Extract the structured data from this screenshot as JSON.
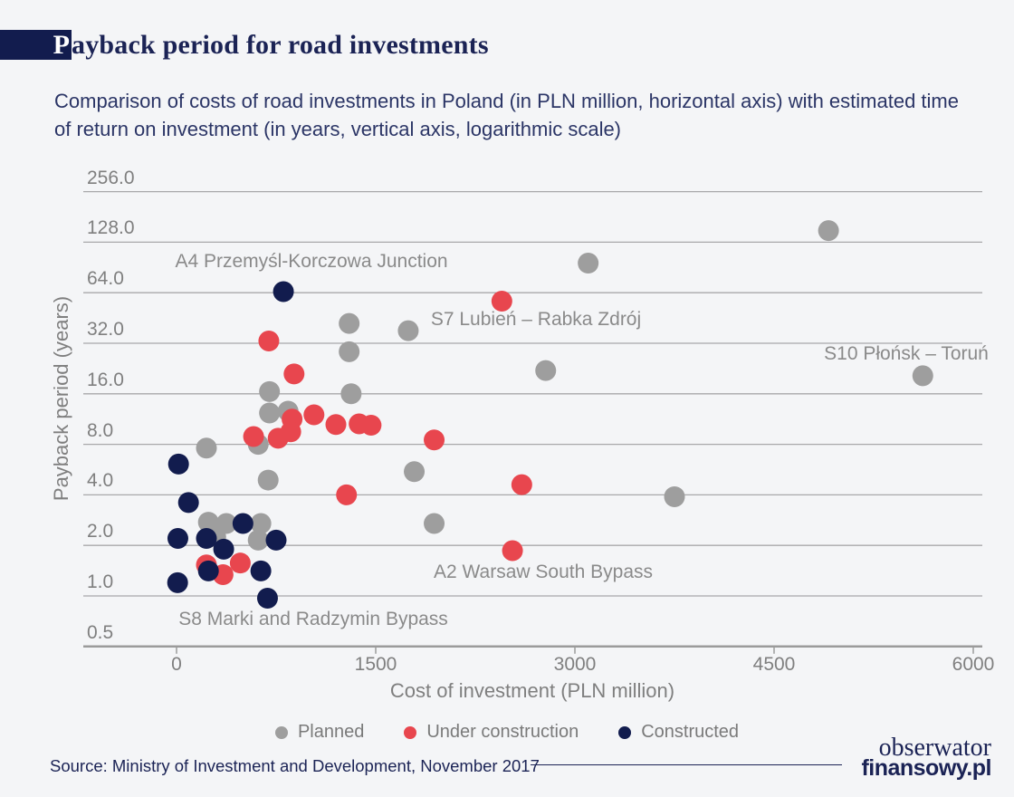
{
  "header": {
    "title_initial": "P",
    "title_rest": "ayback period for road investments",
    "subtitle_line1": "Comparison of costs of road investments in Poland (in PLN million, horizontal axis) with estimated time",
    "subtitle_line2": "of return on investment (in years, vertical axis, logarithmic scale)"
  },
  "chart_data": {
    "type": "scatter",
    "title": "Payback period for road investments",
    "xlabel": "Cost of investment (PLN million)",
    "ylabel": "Payback period (years)",
    "x_ticks": [
      0,
      1500,
      3000,
      4500,
      6000
    ],
    "xlim": [
      0,
      6000
    ],
    "y_ticks": [
      256.0,
      128.0,
      64.0,
      32.0,
      16.0,
      8.0,
      4.0,
      2.0,
      1.0,
      0.5
    ],
    "y_scale": "log2",
    "ylim": [
      0.5,
      256
    ],
    "grid": "horizontal-only",
    "legend_position": "bottom",
    "colors": {
      "planned": "#9e9e9e",
      "under_construction": "#e8464e",
      "constructed": "#121c4e"
    },
    "series": [
      {
        "name": "Planned",
        "color": "#9e9e9e",
        "points": [
          {
            "cost": 3100,
            "years": 96
          },
          {
            "cost": 4910,
            "years": 150
          },
          {
            "cost": 5620,
            "years": 20.5,
            "label": "S10 Płońsk – Toruń"
          },
          {
            "cost": 1300,
            "years": 42
          },
          {
            "cost": 1300,
            "years": 28.5
          },
          {
            "cost": 1745,
            "years": 38
          },
          {
            "cost": 2780,
            "years": 22
          },
          {
            "cost": 700,
            "years": 16.5
          },
          {
            "cost": 1315,
            "years": 16
          },
          {
            "cost": 700,
            "years": 12.3
          },
          {
            "cost": 840,
            "years": 12.6
          },
          {
            "cost": 615,
            "years": 8.0
          },
          {
            "cost": 225,
            "years": 7.6
          },
          {
            "cost": 690,
            "years": 4.9
          },
          {
            "cost": 1790,
            "years": 5.5
          },
          {
            "cost": 3750,
            "years": 3.9
          },
          {
            "cost": 1940,
            "years": 2.7
          },
          {
            "cost": 240,
            "years": 2.75
          },
          {
            "cost": 375,
            "years": 2.7
          },
          {
            "cost": 635,
            "years": 2.7
          },
          {
            "cost": 615,
            "years": 2.15
          },
          {
            "cost": 295,
            "years": 2.25
          }
        ]
      },
      {
        "name": "Under construction",
        "color": "#e8464e",
        "points": [
          {
            "cost": 695,
            "years": 33
          },
          {
            "cost": 2450,
            "years": 57,
            "label": "S7 Lubień – Rabka Zdrój"
          },
          {
            "cost": 885,
            "years": 21
          },
          {
            "cost": 870,
            "years": 11.3
          },
          {
            "cost": 860,
            "years": 9.5
          },
          {
            "cost": 1035,
            "years": 12
          },
          {
            "cost": 1200,
            "years": 10.5
          },
          {
            "cost": 1375,
            "years": 10.6
          },
          {
            "cost": 1465,
            "years": 10.4
          },
          {
            "cost": 580,
            "years": 8.9
          },
          {
            "cost": 765,
            "years": 8.7
          },
          {
            "cost": 1940,
            "years": 8.5
          },
          {
            "cost": 1280,
            "years": 4.0
          },
          {
            "cost": 2600,
            "years": 4.6
          },
          {
            "cost": 225,
            "years": 1.53
          },
          {
            "cost": 350,
            "years": 1.34
          },
          {
            "cost": 480,
            "years": 1.57
          },
          {
            "cost": 2530,
            "years": 1.86,
            "label": "A2 Warsaw South Bypass"
          }
        ]
      },
      {
        "name": "Constructed",
        "color": "#121c4e",
        "points": [
          {
            "cost": 805,
            "years": 65,
            "label": "A4 Przemyśl-Korczowa Junction"
          },
          {
            "cost": 15,
            "years": 6.1
          },
          {
            "cost": 90,
            "years": 3.6
          },
          {
            "cost": 500,
            "years": 2.7
          },
          {
            "cost": 10,
            "years": 2.2
          },
          {
            "cost": 225,
            "years": 2.2
          },
          {
            "cost": 355,
            "years": 1.9
          },
          {
            "cost": 750,
            "years": 2.15
          },
          {
            "cost": 240,
            "years": 1.41
          },
          {
            "cost": 635,
            "years": 1.41
          },
          {
            "cost": 8,
            "years": 1.2
          },
          {
            "cost": 685,
            "years": 0.97,
            "label": "S8 Marki and Radzymin Bypass"
          }
        ]
      }
    ],
    "annotations": [
      {
        "text": "A4 Przemyśl-Korczowa Junction",
        "ax": 344,
        "ay": 289
      },
      {
        "text": "S7 Lubień – Rabka Zdrój",
        "ax": 592,
        "ay": 353
      },
      {
        "text": "S10 Płońsk – Toruń",
        "ax": 1001,
        "ay": 391
      },
      {
        "text": "A2 Warsaw South Bypass",
        "ax": 600,
        "ay": 632
      },
      {
        "text": "S8 Marki and Radzymin Bypass",
        "ax": 346,
        "ay": 684
      }
    ]
  },
  "footer": {
    "source": "Source: Ministry of Investment and Development, November 2017",
    "logo_line1": "obserwator",
    "logo_line2": "finansowy.pl"
  }
}
